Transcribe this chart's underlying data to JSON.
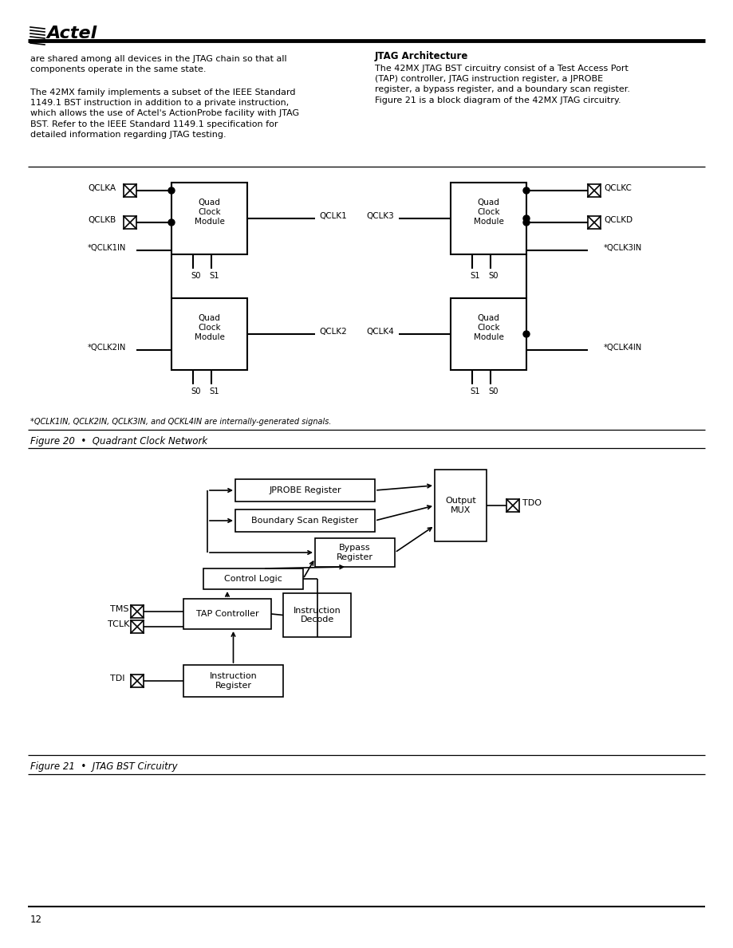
{
  "bg_color": "#ffffff",
  "text_color": "#000000",
  "title_text": "JTAG Architecture",
  "left_para1": "are shared among all devices in the JTAG chain so that all\ncomponents operate in the same state.",
  "left_para2": "The 42MX family implements a subset of the IEEE Standard\n1149.1 BST instruction in addition to a private instruction,\nwhich allows the use of Actel's ActionProbe facility with JTAG\nBST. Refer to the IEEE Standard 1149.1 specification for\ndetailed information regarding JTAG testing.",
  "right_para": "The 42MX JTAG BST circuitry consist of a Test Access Port\n(TAP) controller, JTAG instruction register, a JPROBE\nregister, a bypass register, and a boundary scan register.\nFigure 21 is a block diagram of the 42MX JTAG circuitry.",
  "fig20_caption": "Figure 20  •  Quadrant Clock Network",
  "fig21_caption": "Figure 21  •  JTAG BST Circuitry",
  "footnote": "*QCLK1IN, QCLK2IN, QCLK3IN, and QCKL4IN are internally-generated signals.",
  "page_number": "12"
}
